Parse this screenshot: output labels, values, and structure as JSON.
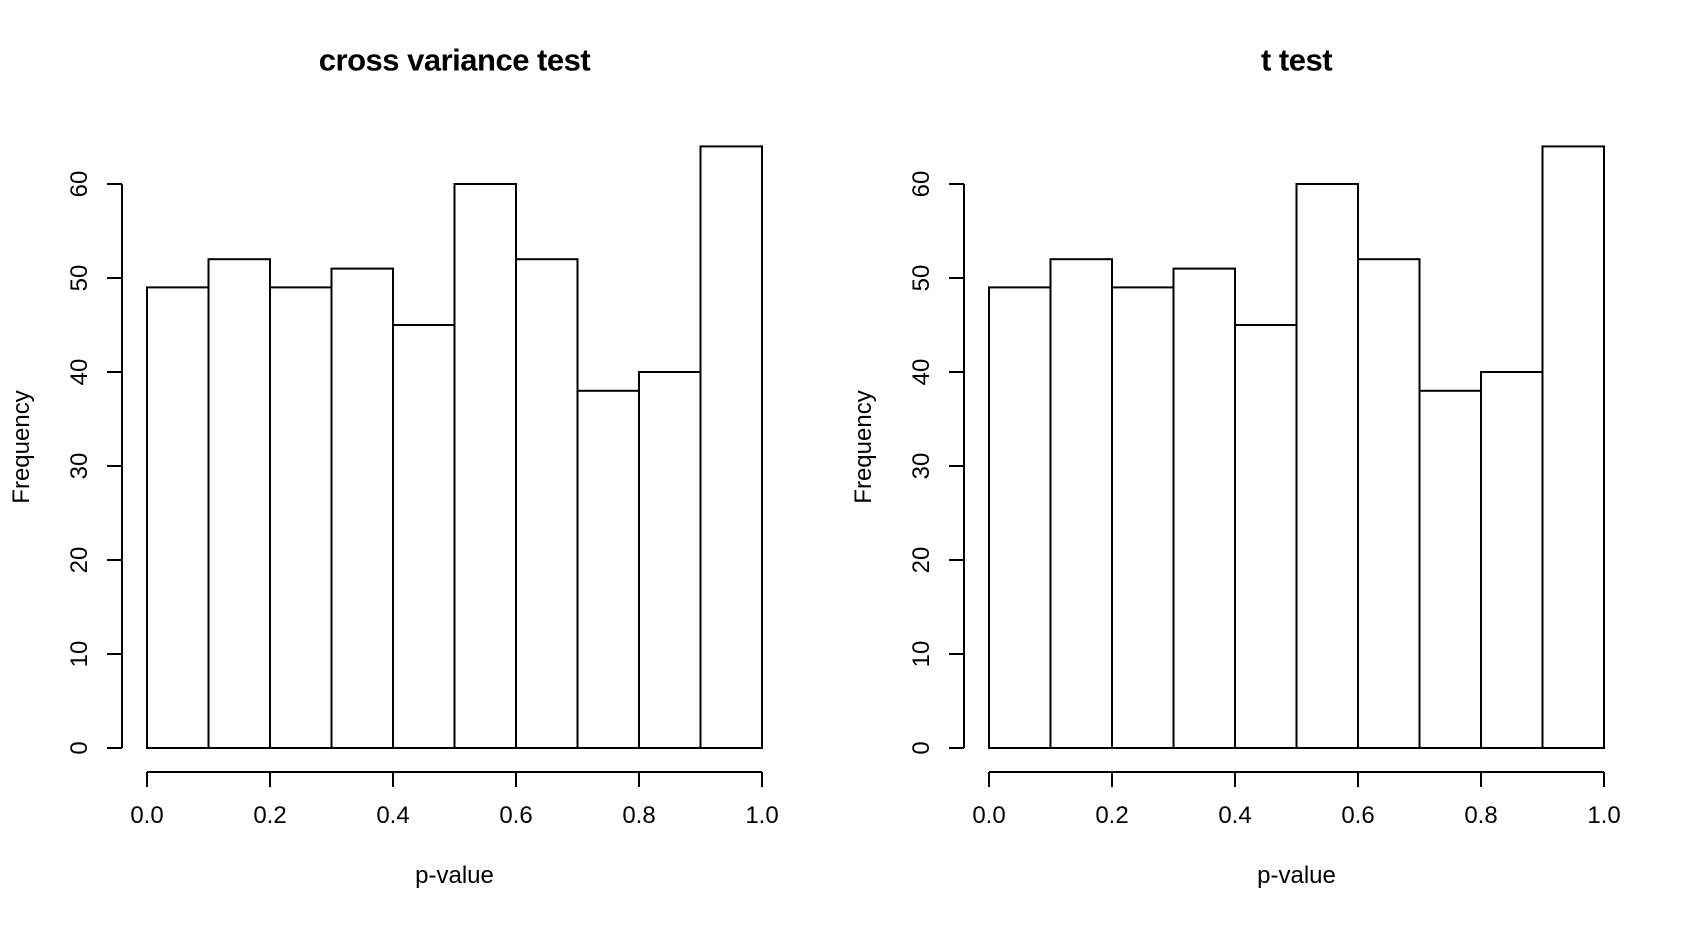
{
  "figure": {
    "background": "#ffffff",
    "foreground": "#000000"
  },
  "chart_data": [
    {
      "type": "bar",
      "subtype": "histogram",
      "title": "cross variance test",
      "xlabel": "p-value",
      "ylabel": "Frequency",
      "categories": [
        "0.0-0.1",
        "0.1-0.2",
        "0.2-0.3",
        "0.3-0.4",
        "0.4-0.5",
        "0.5-0.6",
        "0.6-0.7",
        "0.7-0.8",
        "0.8-0.9",
        "0.9-1.0"
      ],
      "values": [
        49,
        52,
        49,
        51,
        45,
        60,
        52,
        38,
        40,
        64
      ],
      "xlim": [
        0,
        1
      ],
      "ylim": [
        0,
        64
      ],
      "x_tick_values": [
        0,
        0.2,
        0.4,
        0.6,
        0.8,
        1.0
      ],
      "x_tick_labels": [
        "0.0",
        "0.2",
        "0.4",
        "0.6",
        "0.8",
        "1.0"
      ],
      "y_tick_values": [
        0,
        10,
        20,
        30,
        40,
        50,
        60
      ],
      "y_tick_labels": [
        "0",
        "10",
        "20",
        "30",
        "40",
        "50",
        "60"
      ],
      "grid": false,
      "legend": null,
      "bar_fill": "#ffffff",
      "bar_stroke": "#000000"
    },
    {
      "type": "bar",
      "subtype": "histogram",
      "title": "t test",
      "xlabel": "p-value",
      "ylabel": "Frequency",
      "categories": [
        "0.0-0.1",
        "0.1-0.2",
        "0.2-0.3",
        "0.3-0.4",
        "0.4-0.5",
        "0.5-0.6",
        "0.6-0.7",
        "0.7-0.8",
        "0.8-0.9",
        "0.9-1.0"
      ],
      "values": [
        49,
        52,
        49,
        51,
        45,
        60,
        52,
        38,
        40,
        64
      ],
      "xlim": [
        0,
        1
      ],
      "ylim": [
        0,
        64
      ],
      "x_tick_values": [
        0,
        0.2,
        0.4,
        0.6,
        0.8,
        1.0
      ],
      "x_tick_labels": [
        "0.0",
        "0.2",
        "0.4",
        "0.6",
        "0.8",
        "1.0"
      ],
      "y_tick_values": [
        0,
        10,
        20,
        30,
        40,
        50,
        60
      ],
      "y_tick_labels": [
        "0",
        "10",
        "20",
        "30",
        "40",
        "50",
        "60"
      ],
      "grid": false,
      "legend": null,
      "bar_fill": "#ffffff",
      "bar_stroke": "#000000"
    }
  ]
}
